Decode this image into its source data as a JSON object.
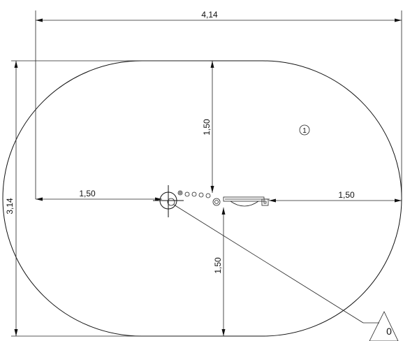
{
  "dimensions": {
    "overall_width": "4,14",
    "overall_height": "3,14",
    "left_radius": "1,50",
    "right_radius": "1,50",
    "top_radius": "1,50",
    "bottom_radius": "1,50"
  },
  "labels": {
    "zone_marker": "1",
    "reference_marker": "0"
  },
  "colors": {
    "line": "#111111",
    "background": "#ffffff"
  }
}
